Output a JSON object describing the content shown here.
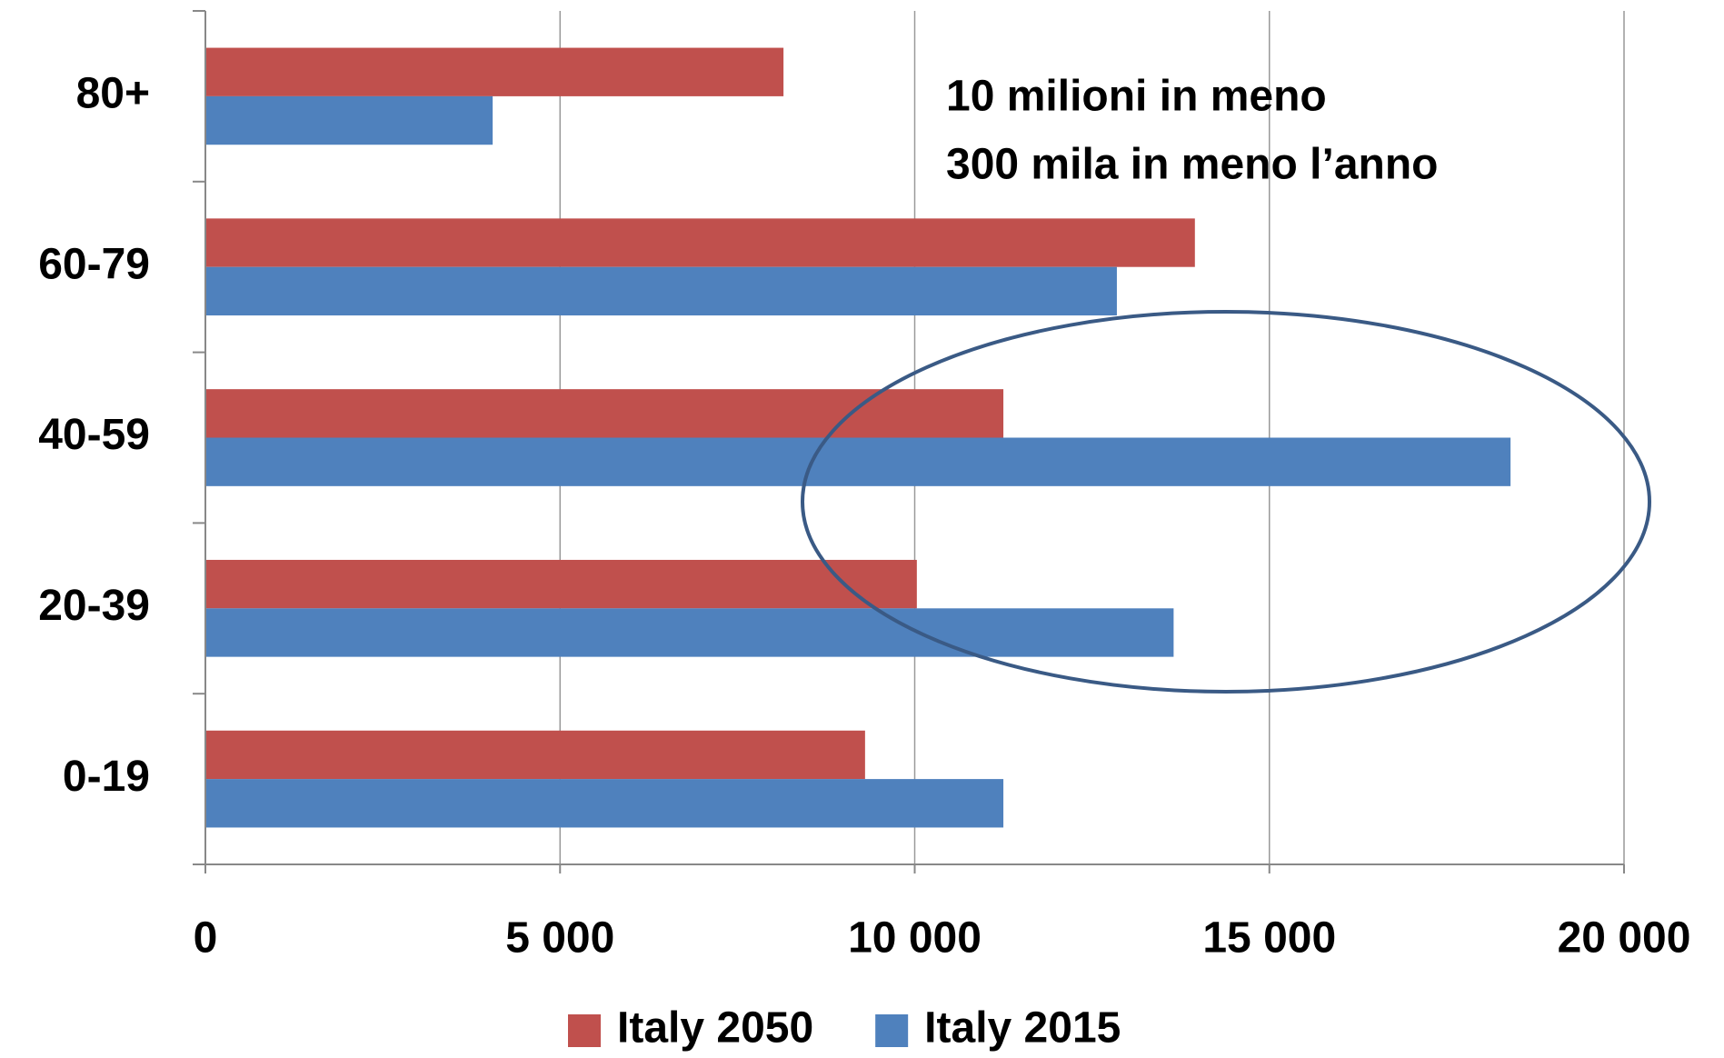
{
  "chart_data": {
    "type": "bar",
    "orientation": "horizontal",
    "categories": [
      "0-19",
      "20-39",
      "40-59",
      "60-79",
      "80+"
    ],
    "series": [
      {
        "name": "Italy 2050",
        "color": "#c0504d",
        "values": [
          9300,
          10030,
          11250,
          13950,
          8150
        ]
      },
      {
        "name": "Italy 2015",
        "color": "#4f81bd",
        "values": [
          11250,
          13650,
          18400,
          12850,
          4050
        ]
      }
    ],
    "xlim": [
      0,
      20000
    ],
    "xticks": [
      0,
      {
        "value": 5000,
        "label": "5 000"
      },
      {
        "value": 10000,
        "label": "10 000"
      },
      {
        "value": 15000,
        "label": "15 000"
      },
      {
        "value": 20000,
        "label": "20 000"
      }
    ],
    "grid": true,
    "legend": "bottom",
    "annotations": [
      "10 milioni in meno",
      "300 mila in meno l’anno"
    ]
  }
}
